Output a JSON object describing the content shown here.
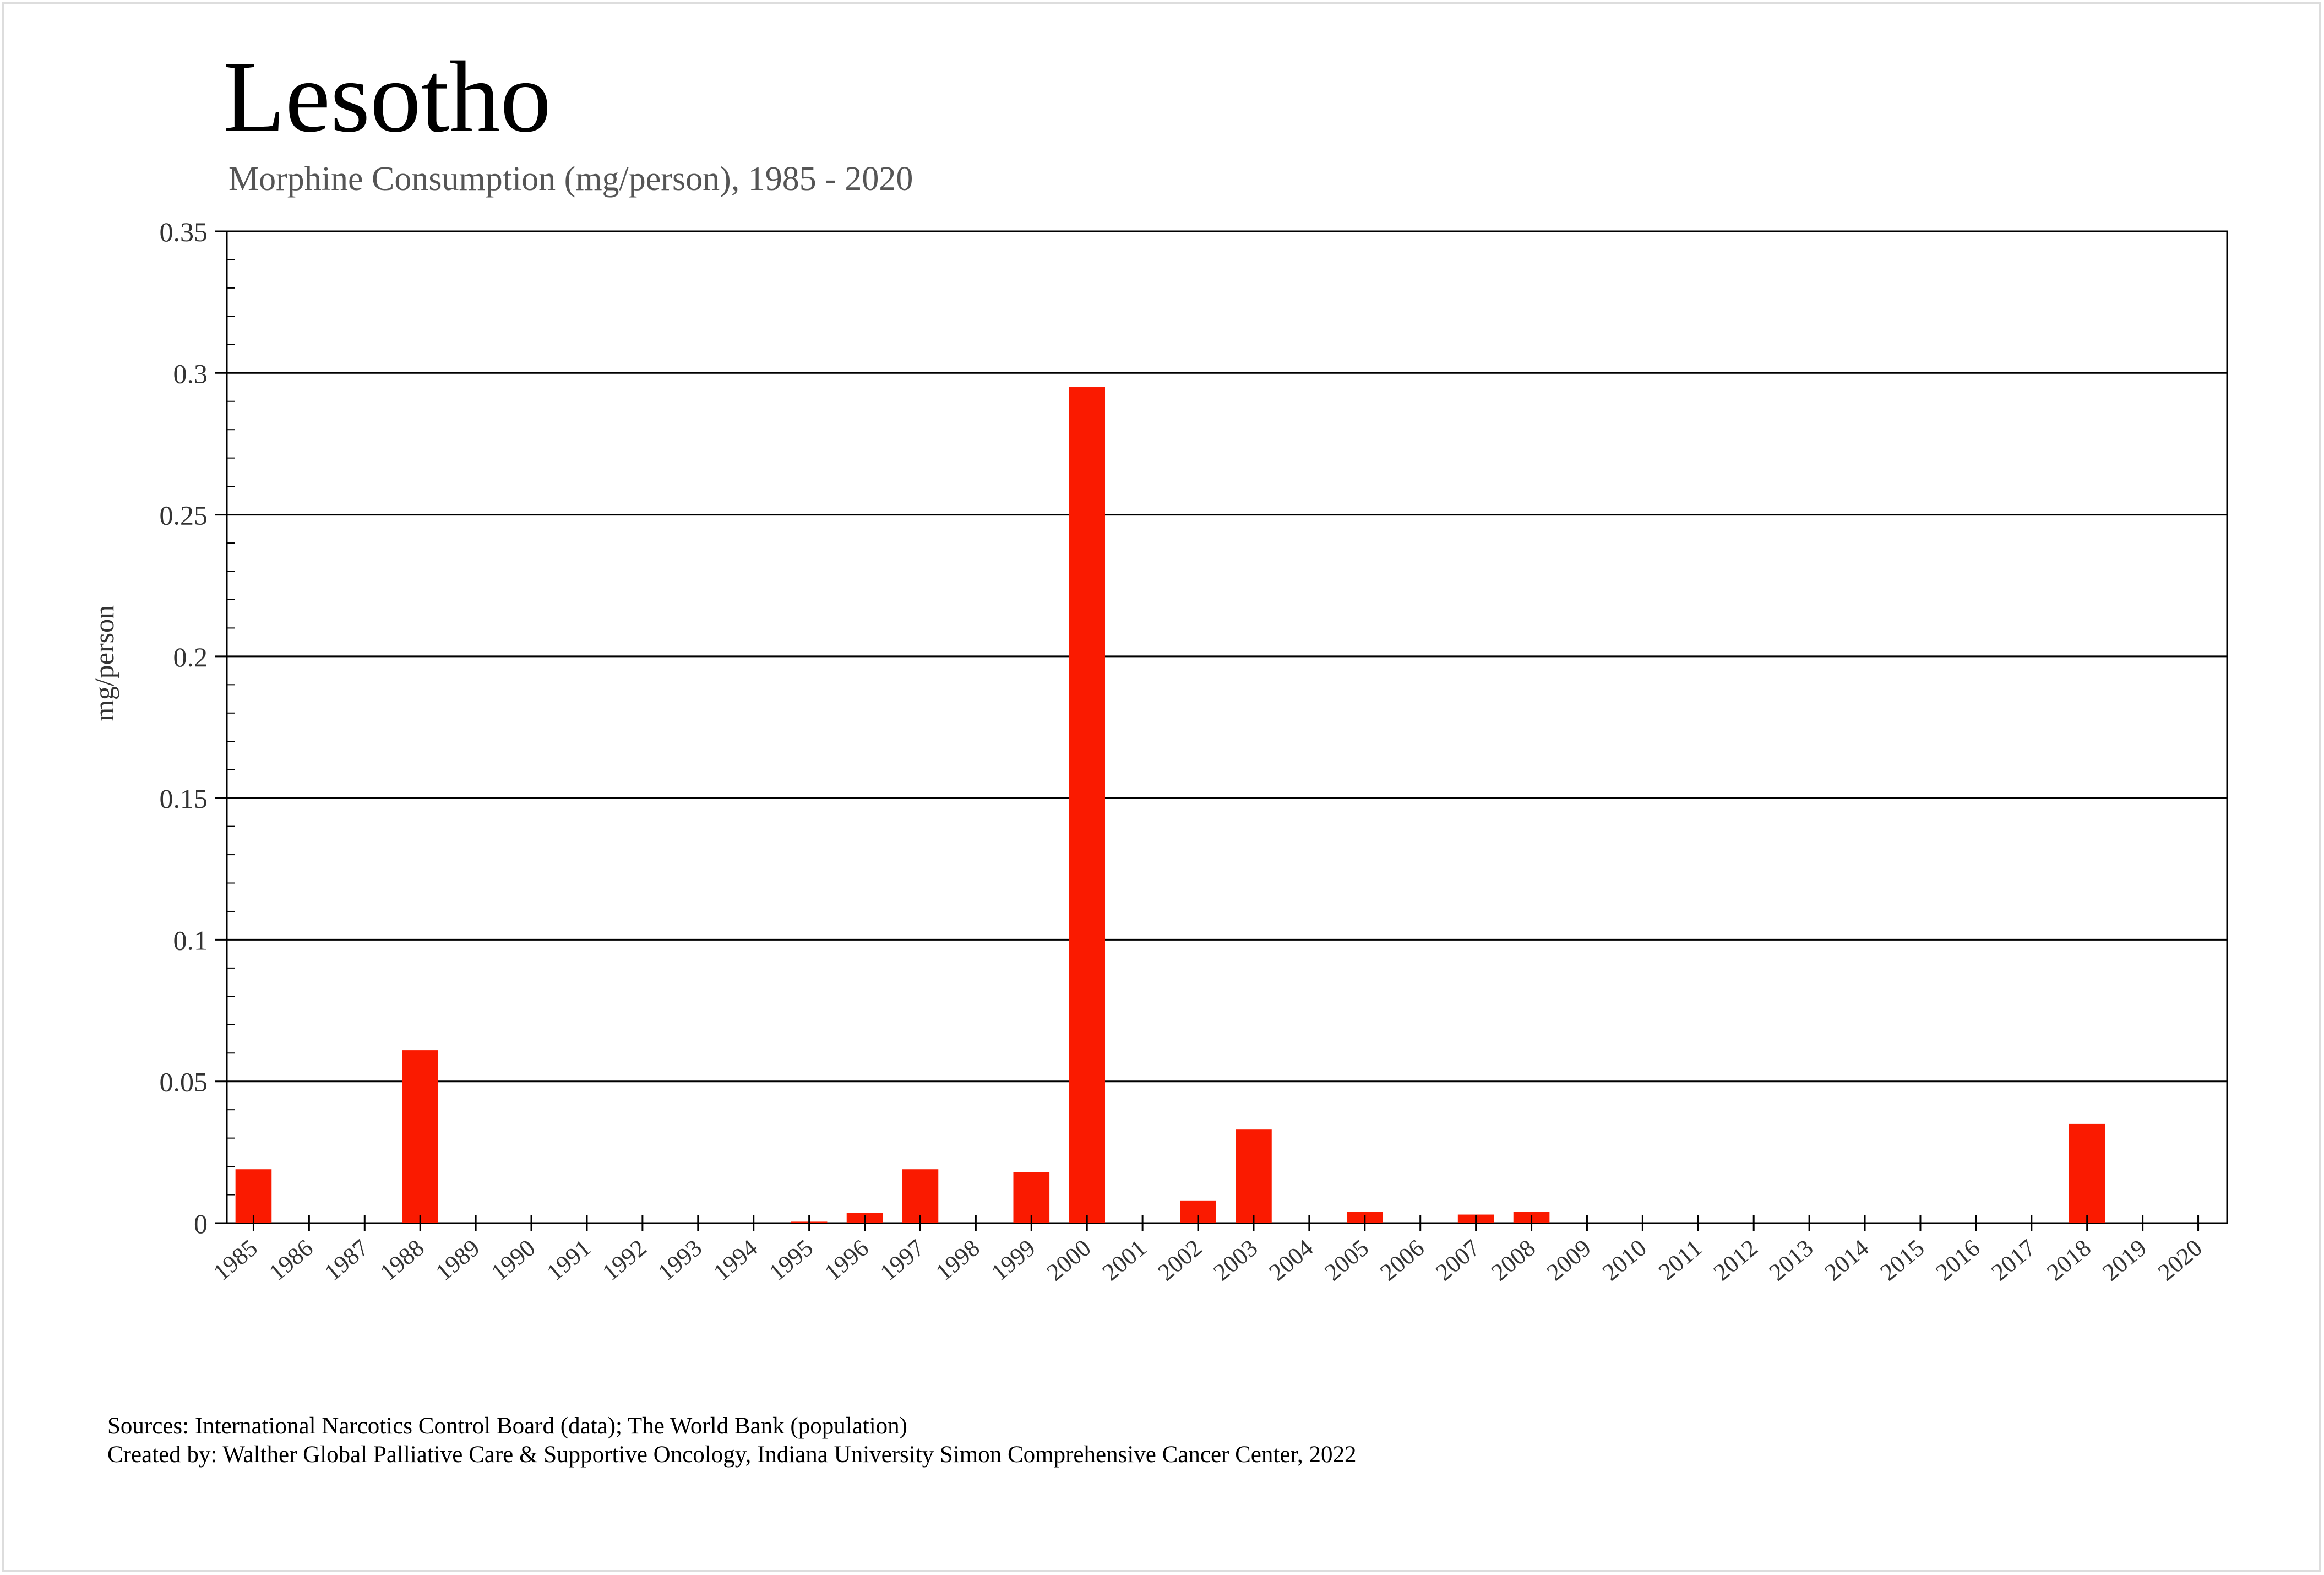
{
  "chart_data": {
    "type": "bar",
    "title": "Lesotho",
    "subtitle": "Morphine Consumption (mg/person), 1985 - 2020",
    "xlabel": "",
    "ylabel": "mg/person",
    "ylim": [
      0,
      0.35
    ],
    "yticks": [
      "0",
      "0.05",
      "0.1",
      "0.15",
      "0.2",
      "0.25",
      "0.3",
      "0.35"
    ],
    "grid": true,
    "bar_color": "#fa1a00",
    "categories": [
      "1985",
      "1986",
      "1987",
      "1988",
      "1989",
      "1990",
      "1991",
      "1992",
      "1993",
      "1994",
      "1995",
      "1996",
      "1997",
      "1998",
      "1999",
      "2000",
      "2001",
      "2002",
      "2003",
      "2004",
      "2005",
      "2006",
      "2007",
      "2008",
      "2009",
      "2010",
      "2011",
      "2012",
      "2013",
      "2014",
      "2015",
      "2016",
      "2017",
      "2018",
      "2019",
      "2020"
    ],
    "values": [
      0.019,
      0,
      0,
      0.061,
      0,
      0,
      0,
      0,
      0,
      0,
      0.0005,
      0.0035,
      0.019,
      0,
      0.018,
      0.295,
      0,
      0.008,
      0.033,
      0,
      0.004,
      0,
      0.003,
      0.004,
      0,
      0,
      0,
      0,
      0,
      0,
      0,
      0,
      0,
      0.035,
      0,
      0
    ]
  },
  "footer": {
    "sources": "Sources: International Narcotics Control Board (data); The World Bank (population)",
    "created": "Created by: Walther  Global Palliative Care & Supportive Oncology, Indiana University Simon Comprehensive Cancer Center, 2022"
  }
}
